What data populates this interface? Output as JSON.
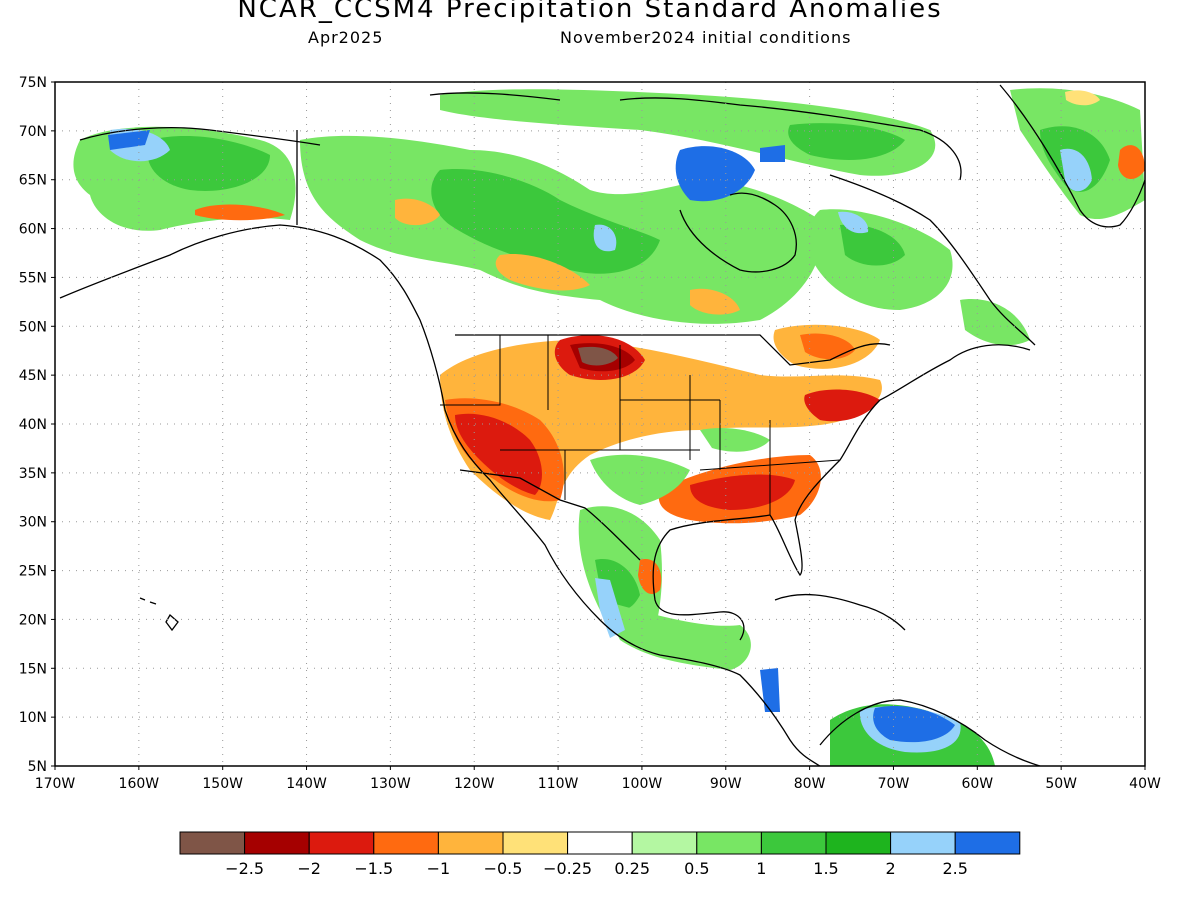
{
  "header": {
    "title": "NCAR_CCSM4 Precipitation Standard Anomalies",
    "valid_month": "Apr2025",
    "initial_conditions": "November2024 initial conditions"
  },
  "axes": {
    "lat_labels": [
      "75N",
      "70N",
      "65N",
      "60N",
      "55N",
      "50N",
      "45N",
      "40N",
      "35N",
      "30N",
      "25N",
      "20N",
      "15N",
      "10N",
      "5N"
    ],
    "lon_labels": [
      "170W",
      "160W",
      "150W",
      "140W",
      "130W",
      "120W",
      "110W",
      "100W",
      "90W",
      "80W",
      "70W",
      "60W",
      "50W",
      "40W"
    ],
    "lon_range": [
      -170,
      -40
    ],
    "lat_range": [
      5,
      75
    ]
  },
  "colorbar": {
    "colors": [
      "#7f5547",
      "#a50000",
      "#dc1a0e",
      "#ff6a10",
      "#ffb43c",
      "#ffe178",
      "#ffffff",
      "#b4f7a2",
      "#78e664",
      "#3cc83c",
      "#1eb41e",
      "#96d2fa",
      "#1e6ee6"
    ],
    "labels": [
      "−2.5",
      "−2",
      "−1.5",
      "−1",
      "−0.5",
      "−0.25",
      "0.25",
      "0.5",
      "1",
      "1.5",
      "2",
      "2.5"
    ]
  },
  "chart_data": {
    "type": "heatmap",
    "title": "NCAR_CCSM4 Precipitation Standard Anomalies",
    "units": "standard anomaly",
    "bins": [
      -2.5,
      -2,
      -1.5,
      -1,
      -0.5,
      -0.25,
      0.25,
      0.5,
      1,
      1.5,
      2,
      2.5
    ],
    "regions": [
      {
        "level": 0.5,
        "lon": [
          -160,
          -140
        ],
        "lat": [
          62,
          70
        ]
      },
      {
        "level": 1.5,
        "lon": [
          -155,
          -145
        ],
        "lat": [
          64,
          68
        ]
      },
      {
        "level": 2.5,
        "lon": [
          -163,
          -157
        ],
        "lat": [
          67,
          70
        ]
      },
      {
        "level": 0.5,
        "lon": [
          -135,
          -110
        ],
        "lat": [
          55,
          67
        ]
      },
      {
        "level": -1,
        "lon": [
          -122,
          -118
        ],
        "lat": [
          60,
          63
        ]
      },
      {
        "level": -1,
        "lon": [
          -112,
          -104
        ],
        "lat": [
          54,
          57
        ]
      },
      {
        "level": 0.5,
        "lon": [
          -110,
          -90
        ],
        "lat": [
          57,
          65
        ]
      },
      {
        "level": 2.5,
        "lon": [
          -92,
          -85
        ],
        "lat": [
          61,
          67
        ]
      },
      {
        "level": 0.5,
        "lon": [
          -75,
          -60
        ],
        "lat": [
          52,
          62
        ]
      },
      {
        "level": -1,
        "lon": [
          -78,
          -68
        ],
        "lat": [
          46,
          50
        ]
      },
      {
        "level": -2.5,
        "lon": [
          -107,
          -103
        ],
        "lat": [
          46,
          48
        ]
      },
      {
        "level": -1.5,
        "lon": [
          -112,
          -98
        ],
        "lat": [
          44,
          50
        ]
      },
      {
        "level": -0.5,
        "lon": [
          -110,
          -85
        ],
        "lat": [
          40,
          45
        ]
      },
      {
        "level": -1.5,
        "lon": [
          -122,
          -108
        ],
        "lat": [
          31,
          41
        ]
      },
      {
        "level": -1.5,
        "lon": [
          -95,
          -80
        ],
        "lat": [
          30,
          36
        ]
      },
      {
        "level": -1.5,
        "lon": [
          -78,
          -72
        ],
        "lat": [
          40,
          43
        ]
      },
      {
        "level": 0.5,
        "lon": [
          -105,
          -92
        ],
        "lat": [
          30,
          37
        ]
      },
      {
        "level": 0.5,
        "lon": [
          -105,
          -90
        ],
        "lat": [
          15,
          25
        ]
      },
      {
        "level": 2.5,
        "lon": [
          -86,
          -83
        ],
        "lat": [
          10,
          15
        ]
      },
      {
        "level": 2.5,
        "lon": [
          -72,
          -62
        ],
        "lat": [
          6,
          12
        ]
      },
      {
        "level": 1.5,
        "lon": [
          -50,
          -42
        ],
        "lat": [
          62,
          71
        ]
      },
      {
        "level": -1.5,
        "lon": [
          -42,
          -40
        ],
        "lat": [
          63,
          66
        ]
      }
    ]
  }
}
